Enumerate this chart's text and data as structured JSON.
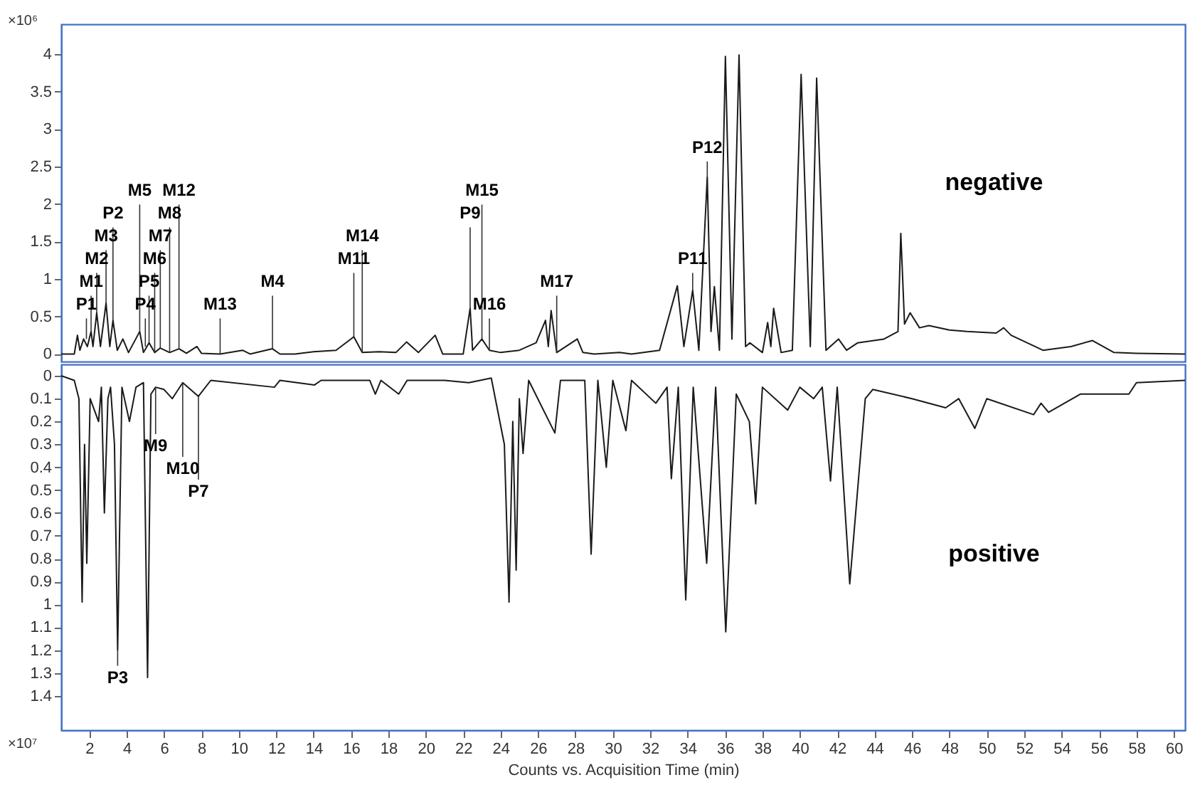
{
  "chart_data": [
    {
      "type": "line",
      "ylabel": "×10⁶",
      "xlim": [
        0.5,
        60.6
      ],
      "ylim": [
        -0.1,
        4.4
      ],
      "yticks": [
        0,
        0.5,
        1,
        1.5,
        2,
        2.5,
        3,
        3.5,
        4
      ],
      "tick_labels": "y",
      "series": [
        {
          "name": "negative",
          "color": "#1a1a1a",
          "x": [
            0.5,
            1.2,
            1.37,
            1.5,
            1.7,
            1.9,
            2.1,
            2.2,
            2.4,
            2.6,
            2.9,
            3.1,
            3.27,
            3.5,
            3.8,
            4.1,
            4.7,
            4.9,
            5.2,
            5.5,
            5.8,
            6.3,
            6.8,
            7.2,
            7.76,
            8.0,
            9.0,
            10.2,
            10.6,
            11.8,
            12.2,
            13.0,
            14.0,
            15.2,
            16.15,
            16.6,
            17.5,
            18.4,
            18.97,
            19.6,
            20.5,
            20.9,
            22.0,
            22.37,
            22.5,
            23.0,
            23.4,
            24.0,
            25.0,
            25.9,
            26.4,
            26.55,
            26.7,
            27.0,
            28.1,
            28.4,
            29.0,
            30.36,
            31.0,
            32.5,
            33.45,
            33.8,
            34.27,
            34.6,
            35.05,
            35.25,
            35.43,
            35.7,
            36.02,
            36.37,
            36.75,
            37.1,
            37.33,
            38.0,
            38.28,
            38.45,
            38.6,
            39.0,
            39.6,
            40.07,
            40.56,
            40.9,
            41.4,
            42.07,
            42.5,
            43.1,
            44.5,
            45.25,
            45.4,
            45.6,
            45.9,
            46.4,
            46.9,
            48.0,
            48.93,
            50.5,
            50.9,
            51.3,
            53.0,
            54.5,
            55.65,
            56.8,
            58.0,
            60.6
          ],
          "values": [
            0,
            0,
            0.25,
            0.05,
            0.2,
            0.1,
            0.3,
            0.1,
            0.55,
            0.1,
            0.68,
            0.1,
            0.45,
            0.05,
            0.2,
            0.02,
            0.3,
            0.02,
            0.15,
            0.02,
            0.08,
            0.02,
            0.07,
            0.01,
            0.1,
            0.01,
            0,
            0.05,
            0,
            0.07,
            0,
            0,
            0.03,
            0.05,
            0.23,
            0.02,
            0.03,
            0.02,
            0.16,
            0.02,
            0.25,
            0,
            0,
            0.61,
            0.05,
            0.2,
            0.05,
            0.02,
            0.05,
            0.15,
            0.45,
            0.1,
            0.58,
            0.02,
            0.2,
            0.02,
            0,
            0.02,
            0,
            0.05,
            0.91,
            0.1,
            0.85,
            0.05,
            2.36,
            0.3,
            0.9,
            0.05,
            3.97,
            0.2,
            3.99,
            0.1,
            0.15,
            0.02,
            0.42,
            0.1,
            0.61,
            0.02,
            0.05,
            3.73,
            0.1,
            3.68,
            0.05,
            0.2,
            0.05,
            0.15,
            0.2,
            0.3,
            1.61,
            0.4,
            0.55,
            0.35,
            0.38,
            0.32,
            0.3,
            0.28,
            0.35,
            0.25,
            0.05,
            0.1,
            0.18,
            0.02,
            0.01,
            0
          ]
        }
      ],
      "annotations": [
        {
          "text": "P1",
          "x": 1.85,
          "y": 0.2
        },
        {
          "text": "M1",
          "x": 2.1,
          "y": 0.3
        },
        {
          "text": "M2",
          "x": 2.4,
          "y": 0.55
        },
        {
          "text": "M3",
          "x": 2.9,
          "y": 0.68
        },
        {
          "text": "P2",
          "x": 3.27,
          "y": 0.45
        },
        {
          "text": "M5",
          "x": 4.7,
          "y": 0.3
        },
        {
          "text": "P4",
          "x": 5.0,
          "y": 0.1
        },
        {
          "text": "P5",
          "x": 5.2,
          "y": 0.15
        },
        {
          "text": "M6",
          "x": 5.5,
          "y": 0.02
        },
        {
          "text": "M7",
          "x": 5.8,
          "y": 0.08
        },
        {
          "text": "M8",
          "x": 6.3,
          "y": 0.02
        },
        {
          "text": "M12",
          "x": 6.8,
          "y": 0.07
        },
        {
          "text": "M13",
          "x": 9.0,
          "y": 0
        },
        {
          "text": "M4",
          "x": 11.8,
          "y": 0.07
        },
        {
          "text": "M11",
          "x": 16.15,
          "y": 0.23
        },
        {
          "text": "M14",
          "x": 16.6,
          "y": 0.02
        },
        {
          "text": "P9",
          "x": 22.37,
          "y": 0.61
        },
        {
          "text": "M15",
          "x": 23.0,
          "y": 0.2
        },
        {
          "text": "M16",
          "x": 23.4,
          "y": 0.05
        },
        {
          "text": "M17",
          "x": 27.0,
          "y": 0.02
        },
        {
          "text": "P11",
          "x": 34.27,
          "y": 0.85
        },
        {
          "text": "P12",
          "x": 35.05,
          "y": 2.36
        }
      ]
    },
    {
      "type": "line",
      "ylabel": "×10⁷",
      "xlabel": "Counts vs. Acquisition Time (min)",
      "xlim": [
        0.5,
        60.6
      ],
      "ylim": [
        1.55,
        -0.05
      ],
      "yticks": [
        0,
        0.1,
        0.2,
        0.3,
        0.4,
        0.5,
        0.6,
        0.7,
        0.8,
        0.9,
        1,
        1.1,
        1.2,
        1.3,
        1.4
      ],
      "xticks": [
        2,
        4,
        6,
        8,
        10,
        12,
        14,
        16,
        18,
        20,
        22,
        24,
        26,
        28,
        30,
        32,
        34,
        36,
        38,
        40,
        42,
        44,
        46,
        48,
        50,
        52,
        54,
        56,
        58,
        60
      ],
      "series": [
        {
          "name": "positive",
          "color": "#1a1a1a",
          "x": [
            0.5,
            1.2,
            1.45,
            1.62,
            1.75,
            1.87,
            2.05,
            2.5,
            2.65,
            2.81,
            3.0,
            3.14,
            3.35,
            3.52,
            3.75,
            4.15,
            4.5,
            4.9,
            5.12,
            5.3,
            5.55,
            6.0,
            6.44,
            7.0,
            7.84,
            8.5,
            11.9,
            12.2,
            14.05,
            14.4,
            17.0,
            17.3,
            17.6,
            18.55,
            19.0,
            21.0,
            22.3,
            23.5,
            24.2,
            24.45,
            24.65,
            24.83,
            25.0,
            25.2,
            25.5,
            26.9,
            27.2,
            28.5,
            28.84,
            29.2,
            29.65,
            30.0,
            30.7,
            31.0,
            32.3,
            32.9,
            33.13,
            33.5,
            33.9,
            34.3,
            35.02,
            35.5,
            36.04,
            36.6,
            37.3,
            37.64,
            38.0,
            39.35,
            40.0,
            40.74,
            41.2,
            41.64,
            42.0,
            42.67,
            43.5,
            43.9,
            46.0,
            47.8,
            48.5,
            49.36,
            50.0,
            52.5,
            52.9,
            53.3,
            55.0,
            57.6,
            58.0,
            60.6
          ],
          "values": [
            0,
            0.02,
            0.1,
            0.99,
            0.3,
            0.82,
            0.1,
            0.2,
            0.05,
            0.6,
            0.1,
            0.05,
            0.3,
            1.2,
            0.05,
            0.2,
            0.05,
            0.03,
            1.32,
            0.08,
            0.05,
            0.06,
            0.1,
            0.03,
            0.09,
            0.02,
            0.05,
            0.02,
            0.04,
            0.02,
            0.02,
            0.08,
            0.02,
            0.08,
            0.02,
            0.02,
            0.03,
            0.01,
            0.3,
            0.99,
            0.2,
            0.85,
            0.1,
            0.34,
            0.02,
            0.25,
            0.02,
            0.02,
            0.78,
            0.02,
            0.4,
            0.02,
            0.24,
            0.02,
            0.12,
            0.05,
            0.45,
            0.05,
            0.98,
            0.05,
            0.82,
            0.05,
            1.12,
            0.08,
            0.2,
            0.56,
            0.05,
            0.15,
            0.05,
            0.1,
            0.05,
            0.46,
            0.05,
            0.91,
            0.1,
            0.06,
            0.1,
            0.14,
            0.1,
            0.23,
            0.1,
            0.17,
            0.12,
            0.16,
            0.08,
            0.08,
            0.03,
            0.02
          ]
        }
      ],
      "annotations": [
        {
          "text": "P3",
          "x": 3.52,
          "y": 1.2
        },
        {
          "text": "M9",
          "x": 5.55,
          "y": 0.05
        },
        {
          "text": "M10",
          "x": 7.0,
          "y": 0.03
        },
        {
          "text": "P7",
          "x": 7.84,
          "y": 0.09
        }
      ]
    }
  ]
}
